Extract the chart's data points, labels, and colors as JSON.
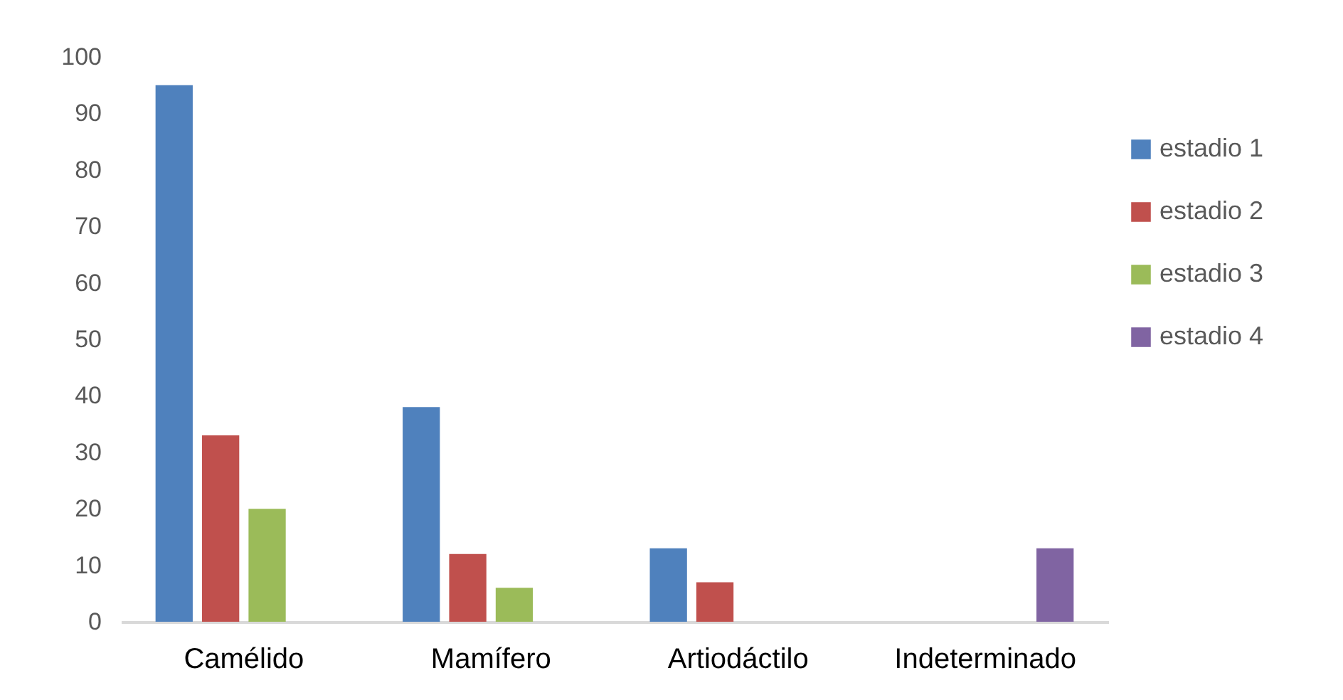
{
  "chart_data": {
    "type": "bar",
    "categories": [
      "Camélido",
      "Mamífero",
      "Artiodáctilo",
      "Indeterminado"
    ],
    "series": [
      {
        "name": "estadio 1",
        "color": "#4f81bd",
        "values": [
          95,
          38,
          13,
          null
        ]
      },
      {
        "name": "estadio 2",
        "color": "#c0504d",
        "values": [
          33,
          12,
          7,
          null
        ]
      },
      {
        "name": "estadio 3",
        "color": "#9bbb59",
        "values": [
          20,
          6,
          null,
          null
        ]
      },
      {
        "name": "estadio 4",
        "color": "#8064a2",
        "values": [
          null,
          null,
          null,
          13
        ]
      }
    ],
    "ylim": [
      0,
      100
    ],
    "yticks": [
      0,
      10,
      20,
      30,
      40,
      50,
      60,
      70,
      80,
      90,
      100
    ],
    "grid": false,
    "legend": "right"
  }
}
